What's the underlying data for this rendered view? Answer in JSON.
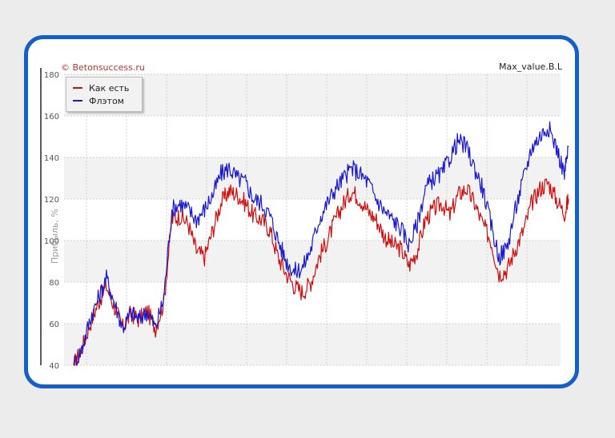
{
  "watermark": "© Betonsuccess.ru",
  "filename": "Max_value.B.L",
  "colors": {
    "frame": "#1560c8",
    "series1": "#d01010",
    "series2": "#1a1ad0",
    "band": "#f2f2f2"
  },
  "chart_data": {
    "type": "line",
    "ylabel": "Прибыль, %",
    "xlabel": "",
    "ylim": [
      40,
      180
    ],
    "yticks": [
      40,
      60,
      80,
      100,
      120,
      140,
      160,
      180
    ],
    "grid": true,
    "legend_position": "top-left",
    "x": [
      0,
      10,
      20,
      30,
      40,
      50,
      60,
      70,
      80,
      90,
      100,
      110,
      120,
      130,
      140,
      150,
      160,
      170,
      180,
      190,
      200,
      210,
      220,
      230,
      240,
      250,
      260,
      270,
      280,
      290,
      300,
      310,
      320,
      330,
      340,
      350,
      360,
      370,
      380,
      390,
      400,
      410,
      420,
      430,
      440,
      450,
      460,
      470,
      480,
      490,
      500,
      510,
      520,
      530,
      540,
      550,
      560,
      570,
      580,
      590,
      600,
      605
    ],
    "series": [
      {
        "name": "Как есть",
        "values": [
          40,
          48,
          60,
          70,
          78,
          68,
          58,
          65,
          62,
          66,
          58,
          70,
          110,
          112,
          108,
          95,
          92,
          105,
          118,
          124,
          122,
          118,
          112,
          110,
          105,
          92,
          84,
          78,
          75,
          80,
          92,
          100,
          110,
          118,
          124,
          120,
          114,
          110,
          102,
          98,
          96,
          88,
          95,
          110,
          115,
          118,
          112,
          122,
          125,
          118,
          108,
          100,
          84,
          86,
          96,
          105,
          118,
          125,
          128,
          120,
          113,
          120
        ]
      },
      {
        "name": "Флэтом",
        "values": [
          40,
          48,
          62,
          72,
          82,
          70,
          58,
          65,
          62,
          66,
          58,
          72,
          115,
          118,
          115,
          110,
          115,
          122,
          132,
          135,
          130,
          128,
          120,
          118,
          112,
          100,
          90,
          85,
          87,
          96,
          110,
          118,
          125,
          130,
          135,
          132,
          128,
          120,
          114,
          110,
          106,
          98,
          108,
          125,
          130,
          132,
          140,
          148,
          145,
          135,
          125,
          108,
          92,
          97,
          115,
          130,
          145,
          150,
          155,
          145,
          132,
          145
        ]
      }
    ]
  }
}
